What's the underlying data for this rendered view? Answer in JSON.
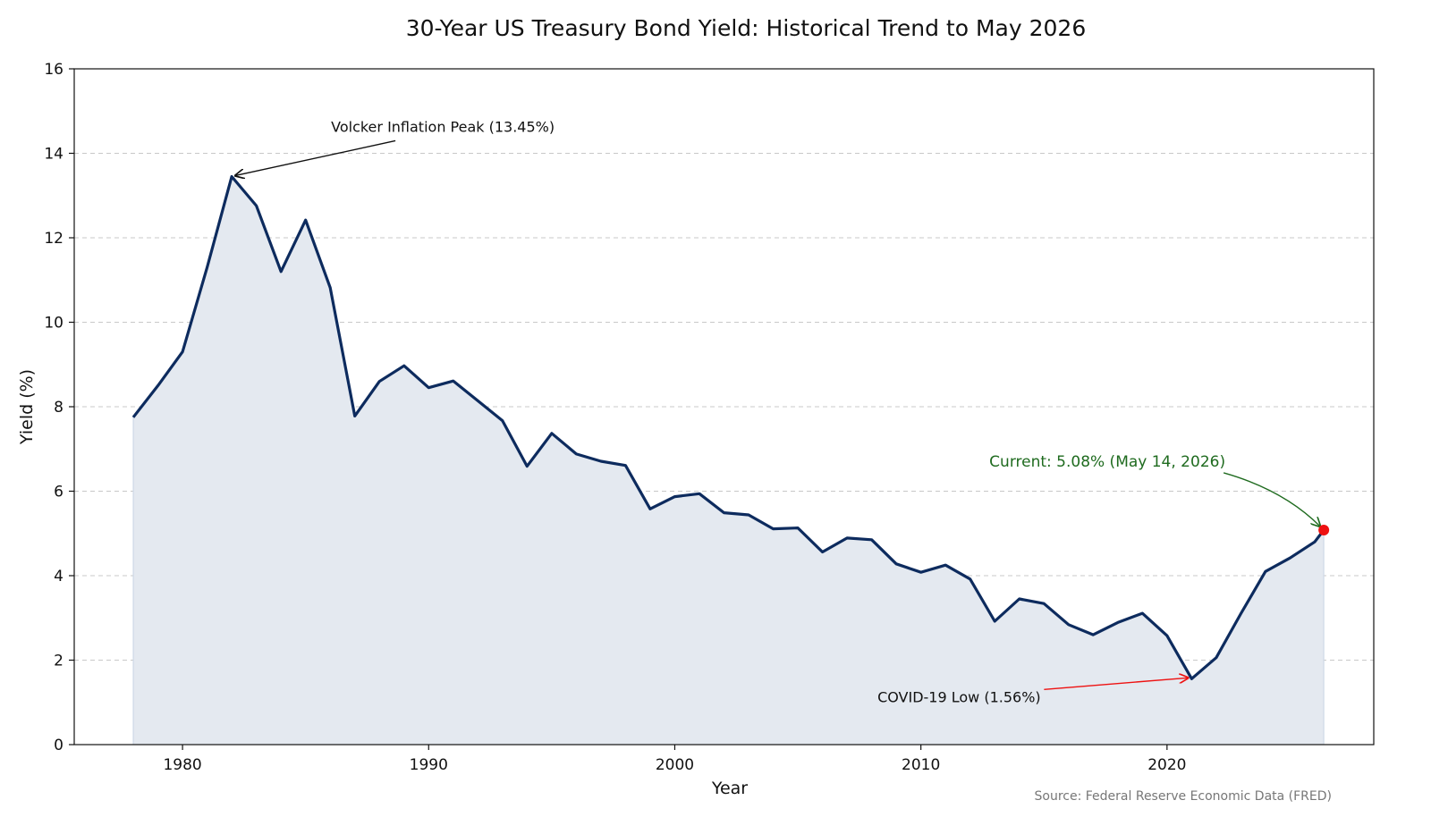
{
  "chart_data": {
    "type": "area",
    "title": "30-Year US Treasury Bond Yield: Historical Trend to May 2026",
    "xlabel": "Year",
    "ylabel": "Yield (%)",
    "xlim": [
      1975.6,
      2028.4
    ],
    "ylim": [
      0,
      16
    ],
    "x_ticks": [
      1980,
      1990,
      2000,
      2010,
      2020
    ],
    "y_ticks": [
      0,
      2,
      4,
      6,
      8,
      10,
      12,
      14,
      16
    ],
    "grid": "horizontal dashed",
    "series": [
      {
        "x": [
          1978,
          1979,
          1980,
          1981,
          1982,
          1983,
          1984,
          1985,
          1986,
          1987,
          1988,
          1989,
          1990,
          1991,
          1992,
          1993,
          1994,
          1995,
          1996,
          1997,
          1998,
          1999,
          2000,
          2001,
          2002,
          2003,
          2004,
          2005,
          2006,
          2007,
          2008,
          2009,
          2010,
          2011,
          2012,
          2013,
          2014,
          2015,
          2016,
          2017,
          2018,
          2019,
          2020,
          2021,
          2022,
          2023,
          2024,
          2025,
          2026,
          2026.37
        ],
        "values": [
          7.75,
          8.5,
          9.3,
          11.3,
          13.45,
          12.76,
          11.2,
          12.42,
          10.82,
          7.78,
          8.6,
          8.97,
          8.45,
          8.61,
          8.14,
          7.67,
          6.59,
          7.37,
          6.88,
          6.71,
          6.61,
          5.58,
          5.87,
          5.94,
          5.49,
          5.44,
          5.11,
          5.13,
          4.56,
          4.89,
          4.85,
          4.28,
          4.08,
          4.25,
          3.92,
          2.92,
          3.45,
          3.34,
          2.84,
          2.6,
          2.89,
          3.11,
          2.58,
          1.56,
          2.06,
          3.1,
          4.1,
          4.42,
          4.8,
          5.08
        ]
      }
    ],
    "colors": {
      "line": "#0d2b5e",
      "fill": "#e4e9f0",
      "current_point": "#ee1111",
      "covid_arrow": "#ee1111",
      "current_text": "#1f6b1f"
    },
    "annotations": {
      "peak": {
        "text": "Volcker Inflation Peak (13.45%)",
        "x": 1982,
        "y": 13.45
      },
      "covid": {
        "text": "COVID-19 Low (1.56%)",
        "x": 2021,
        "y": 1.56
      },
      "current": {
        "text": "Current: 5.08% (May 14, 2026)",
        "x": 2026.37,
        "y": 5.08
      }
    },
    "source": "Source: Federal Reserve Economic Data (FRED)"
  }
}
